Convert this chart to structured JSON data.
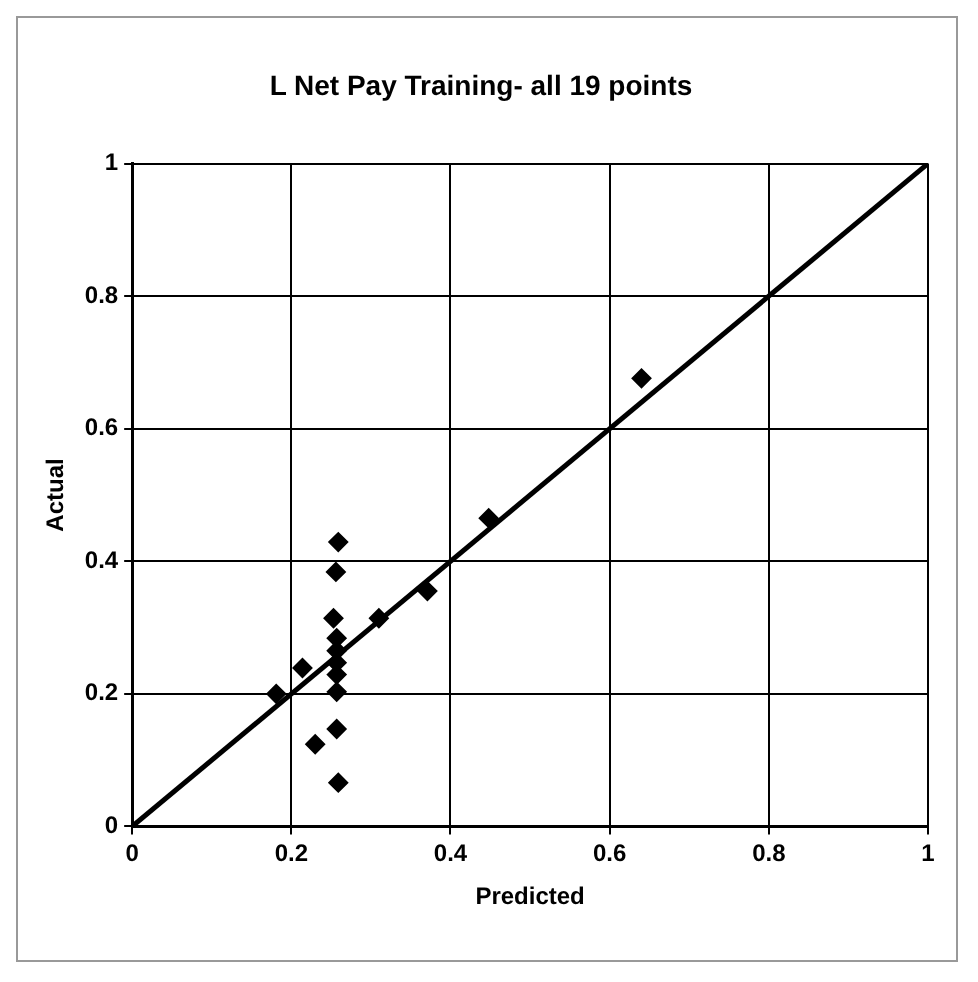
{
  "chart_data": {
    "type": "scatter",
    "title": "L Net Pay Training- all 19 points",
    "xlabel": "Predicted",
    "ylabel": "Actual",
    "xlim": [
      0,
      1
    ],
    "ylim": [
      0,
      1
    ],
    "xticks": [
      0,
      0.2,
      0.4,
      0.6,
      0.8,
      1
    ],
    "yticks": [
      0,
      0.2,
      0.4,
      0.6,
      0.8,
      1
    ],
    "grid": true,
    "series": [
      {
        "type": "scatter",
        "marker": "diamond",
        "color": "#000000",
        "x": [
          0.259,
          0.256,
          0.253,
          0.257,
          0.257,
          0.257,
          0.257,
          0.257,
          0.257,
          0.259,
          0.23,
          0.214,
          0.181,
          0.31,
          0.371,
          0.448,
          0.64
        ],
        "values": [
          0.429,
          0.384,
          0.314,
          0.284,
          0.265,
          0.247,
          0.229,
          0.203,
          0.147,
          0.066,
          0.124,
          0.239,
          0.2,
          0.314,
          0.355,
          0.465,
          0.676
        ]
      },
      {
        "type": "line",
        "marker": "none",
        "color": "#000000",
        "x": [
          0,
          1
        ],
        "values": [
          0,
          1
        ]
      }
    ]
  }
}
